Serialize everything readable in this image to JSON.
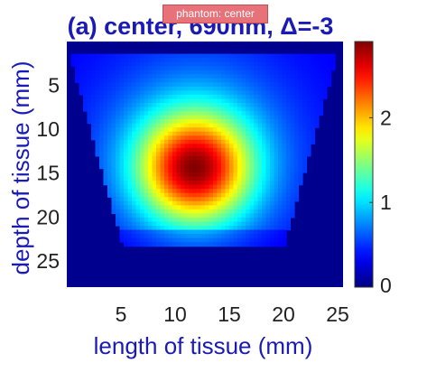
{
  "title": "(a) center, 690nm, Δ=-3",
  "annotation": "phantom: center",
  "colors": {
    "title": "#1a1ab4",
    "axis_label": "#1a1ab4",
    "tick": "#222222",
    "background_cell": "#00008f"
  },
  "chart_data": {
    "type": "heatmap",
    "xlabel": "length of tissue (mm)",
    "ylabel": "depth of tissue (mm)",
    "xlim": [
      0,
      25.5
    ],
    "ylim": [
      0,
      28
    ],
    "xticks": [
      "5",
      "10",
      "15",
      "20",
      "25"
    ],
    "yticks": [
      "5",
      "10",
      "15",
      "20",
      "25"
    ],
    "colorbar": {
      "colormap": "jet",
      "range": [
        0,
        2.9
      ],
      "ticks": [
        "0",
        "1",
        "2"
      ]
    },
    "peak": {
      "x": 11.8,
      "y": 14.5,
      "value": 2.85
    },
    "colormap_sampled": true
  }
}
